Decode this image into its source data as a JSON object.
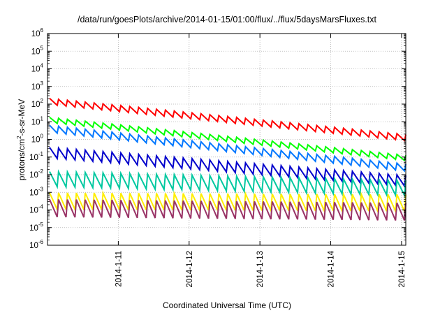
{
  "chart_data": {
    "type": "line",
    "title": "/data/run/goesPlots/archive/2014-01-15/01:00/flux/../flux/5daysMarsFluxes.txt",
    "xlabel": "Coordinated Universal Time (UTC)",
    "ylabel": {
      "base": "protons/cm",
      "sup": "2",
      "rest": "-s-sr-MeV"
    },
    "y_scale": "log",
    "ylim_exponent": [
      -6,
      6
    ],
    "y_tick_exponents": [
      -6,
      -5,
      -4,
      -3,
      -2,
      -1,
      0,
      1,
      2,
      3,
      4,
      5,
      6
    ],
    "y_tick_base": "10",
    "x_range_days": [
      0,
      5.06
    ],
    "x_ticks": [
      {
        "label": "2014-1-11",
        "day": 1
      },
      {
        "label": "2014-1-12",
        "day": 2
      },
      {
        "label": "2014-1-13",
        "day": 3
      },
      {
        "label": "2014-1-14",
        "day": 4
      },
      {
        "label": "2014-1-15",
        "day": 5
      }
    ],
    "grid": true,
    "series": [
      {
        "color": "#ff0000",
        "log_start": 2.15,
        "log_end": 0.1,
        "amp": 0.35,
        "teeth": 40,
        "x_start": 0.03,
        "x_end": 5.06
      },
      {
        "color": "#00ff00",
        "log_start": 1.1,
        "log_end": -1.05,
        "amp": 0.3,
        "teeth": 40,
        "x_start": 0.03,
        "x_end": 5.06
      },
      {
        "color": "#0077ff",
        "log_start": 0.6,
        "log_end": -1.6,
        "amp": 0.4,
        "teeth": 40,
        "x_start": 0.03,
        "x_end": 5.06
      },
      {
        "color": "#0000cc",
        "log_start": -0.75,
        "log_end": -2.35,
        "amp": 0.6,
        "teeth": 40,
        "x_start": 0.03,
        "x_end": 5.06
      },
      {
        "color": "#00c8a0",
        "log_start": -2.25,
        "log_end": -2.75,
        "amp": 0.85,
        "teeth": 40,
        "x_start": 0.03,
        "x_end": 5.06
      },
      {
        "color": "#ffee00",
        "log_start": -3.5,
        "log_end": -3.6,
        "amp": 0.95,
        "teeth": 40,
        "x_start": 0.03,
        "x_end": 5.06
      },
      {
        "color": "#993366",
        "log_start": -3.9,
        "log_end": -4.1,
        "amp": 1.0,
        "teeth": 40,
        "x_start": 0.03,
        "x_end": 5.06
      }
    ]
  }
}
